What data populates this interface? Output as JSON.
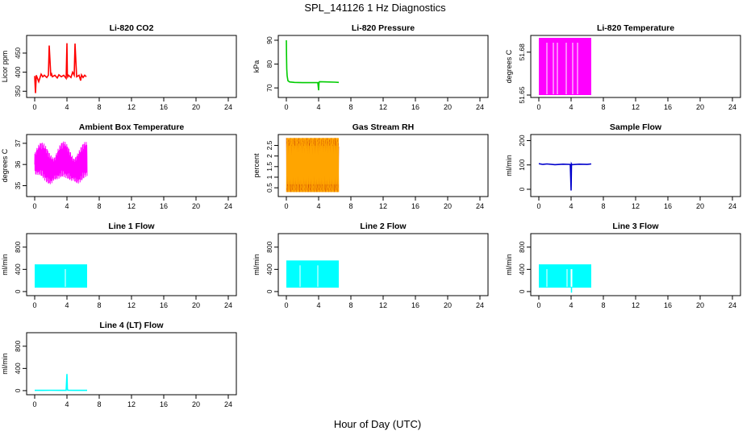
{
  "title": "SPL_141126  1 Hz Diagnostics",
  "xlabel": "Hour of Day (UTC)",
  "x_ticks": [
    0,
    4,
    8,
    12,
    16,
    20,
    24
  ],
  "chart_data": [
    {
      "type": "line",
      "title": "Li-820 CO2",
      "ylabel": "Licor ppm",
      "color": "#ff0000",
      "xlim": [
        0,
        24
      ],
      "ylim": [
        340,
        490
      ],
      "yticks": [
        350,
        400,
        450
      ],
      "series": [
        {
          "x": [
            0,
            0.1,
            0.2,
            0.5,
            0.8,
            1.0,
            1.2,
            1.5,
            1.7,
            1.8,
            2.0,
            2.1,
            2.2,
            2.5,
            2.8,
            3.0,
            3.3,
            3.6,
            3.9,
            4.0,
            4.05,
            4.1,
            4.2,
            4.5,
            4.7,
            4.9,
            5.0,
            5.2,
            5.5,
            5.7,
            5.8,
            6.0,
            6.2,
            6.4
          ],
          "y": [
            390,
            345,
            392,
            375,
            395,
            388,
            392,
            386,
            392,
            470,
            390,
            395,
            388,
            392,
            385,
            393,
            388,
            392,
            384,
            476,
            395,
            388,
            392,
            386,
            400,
            392,
            475,
            388,
            392,
            378,
            393,
            386,
            392,
            388
          ]
        }
      ]
    },
    {
      "type": "line",
      "title": "Li-820 Pressure",
      "ylabel": "kPa",
      "color": "#00cc00",
      "xlim": [
        0,
        24
      ],
      "ylim": [
        67,
        91
      ],
      "yticks": [
        70,
        80,
        90
      ],
      "series": [
        {
          "x": [
            0,
            0.02,
            0.05,
            0.1,
            0.2,
            0.4,
            1,
            2,
            3,
            3.9,
            4.0,
            4.05,
            4.1,
            5,
            6,
            6.5
          ],
          "y": [
            90,
            84,
            78,
            75,
            73,
            72.5,
            72.3,
            72.2,
            72.2,
            72.2,
            69,
            72.2,
            72.6,
            72.5,
            72.4,
            72.3
          ]
        }
      ]
    },
    {
      "type": "area",
      "title": "Li-820 Temperature",
      "ylabel": "degrees C",
      "color": "#ff00ff",
      "xlim": [
        0,
        24
      ],
      "ylim": [
        51.65,
        51.69
      ],
      "yticks": [
        51.65,
        51.68
      ],
      "band": {
        "x0": 0,
        "x1": 6.5,
        "low": 51.65,
        "high": 51.69
      },
      "dips": [
        1.0,
        1.8,
        2.3,
        3.4,
        4.2,
        4.8
      ]
    },
    {
      "type": "line",
      "title": "Ambient Box Temperature",
      "ylabel": "degrees C",
      "color": "#ff00ff",
      "xlim": [
        0,
        24
      ],
      "ylim": [
        34.6,
        37.3
      ],
      "yticks": [
        35.0,
        36.0,
        37.0
      ],
      "osc": {
        "x0": 0,
        "x1": 6.5,
        "center": 36.0,
        "amp": 0.85,
        "hi": 37.2,
        "lo": 34.8
      }
    },
    {
      "type": "area",
      "title": "Gas Stream RH",
      "ylabel": "percent",
      "color": "#ffa500",
      "color2": "#cc4400",
      "xlim": [
        0,
        24
      ],
      "ylim": [
        0.2,
        2.9
      ],
      "yticks": [
        0.5,
        1.0,
        1.5,
        2.0,
        2.5
      ],
      "band": {
        "x0": 0,
        "x1": 6.5,
        "low": 0.3,
        "high": 2.85
      }
    },
    {
      "type": "line",
      "title": "Sample Flow",
      "ylabel": "ml/min",
      "color": "#0000cc",
      "xlim": [
        0,
        24
      ],
      "ylim": [
        -20,
        215
      ],
      "yticks": [
        0,
        100,
        200
      ],
      "series": [
        {
          "x": [
            0,
            0.5,
            1,
            2,
            3,
            3.9,
            4.0,
            4.05,
            4.1,
            5,
            6,
            6.5
          ],
          "y": [
            105,
            102,
            104,
            101,
            103,
            102,
            -5,
            104,
            101,
            103,
            102,
            104
          ]
        }
      ]
    },
    {
      "type": "area",
      "title": "Line 1 Flow",
      "ylabel": "ml/min",
      "color": "#00ffff",
      "xlim": [
        0,
        24
      ],
      "ylim": [
        -30,
        1000
      ],
      "yticks": [
        0,
        400,
        800
      ],
      "band": {
        "x0": 0,
        "x1": 6.5,
        "low": 70,
        "high": 490
      },
      "dips": [
        3.8
      ]
    },
    {
      "type": "area",
      "title": "Line 2 Flow",
      "ylabel": "ml/min",
      "color": "#00ffff",
      "xlim": [
        0,
        24
      ],
      "ylim": [
        -30,
        1000
      ],
      "yticks": [
        0,
        400,
        800
      ],
      "band": {
        "x0": 0,
        "x1": 6.5,
        "low": 70,
        "high": 560
      },
      "dips": [
        1.7,
        3.9
      ]
    },
    {
      "type": "area",
      "title": "Line 3 Flow",
      "ylabel": "ml/min",
      "color": "#00ffff",
      "xlim": [
        0,
        24
      ],
      "ylim": [
        -30,
        1000
      ],
      "yticks": [
        0,
        400,
        800
      ],
      "band": {
        "x0": 0,
        "x1": 6.5,
        "low": 70,
        "high": 490
      },
      "dips": [
        1.0,
        3.5,
        4.0,
        4.1
      ]
    },
    {
      "type": "line",
      "title": "Line 4 (LT) Flow",
      "ylabel": "ml/min",
      "color": "#00ffff",
      "xlim": [
        0,
        24
      ],
      "ylim": [
        -30,
        1000
      ],
      "yticks": [
        0,
        400,
        800
      ],
      "series": [
        {
          "x": [
            0,
            1,
            2,
            3,
            3.9,
            4.0,
            4.05,
            4.1,
            5,
            6,
            6.5
          ],
          "y": [
            5,
            5,
            6,
            5,
            5,
            300,
            40,
            6,
            5,
            5,
            5
          ]
        }
      ]
    }
  ]
}
